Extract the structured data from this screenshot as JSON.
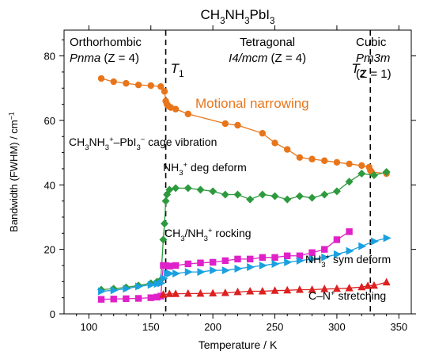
{
  "chart_data": {
    "type": "line",
    "title_parts": [
      {
        "t": "CH",
        "s": "base"
      },
      {
        "t": "3",
        "s": "sub"
      },
      {
        "t": "NH",
        "s": "base"
      },
      {
        "t": "3",
        "s": "sub"
      },
      {
        "t": "PbI",
        "s": "base"
      },
      {
        "t": "3",
        "s": "sub"
      }
    ],
    "xlabel": "Temperature / K",
    "ylabel_parts": [
      {
        "t": "Bandwidth (FWHM) / cm",
        "s": "base"
      },
      {
        "t": "−1",
        "s": "sup"
      }
    ],
    "xlim": [
      80,
      360
    ],
    "ylim": [
      0,
      88
    ],
    "xticks": [
      100,
      150,
      200,
      250,
      300,
      350
    ],
    "yticks": [
      0,
      20,
      40,
      60,
      80
    ],
    "transitions": [
      {
        "x": 162,
        "label": "T",
        "sub": "1"
      },
      {
        "x": 327,
        "label": "T",
        "sub": "2"
      }
    ],
    "phases": [
      {
        "name": "Orthorhombic",
        "group": "Pnma",
        "z": "(Z = 4)"
      },
      {
        "name": "Tetragonal",
        "group": "I4/mcm",
        "z": "(Z = 4)"
      },
      {
        "name": "Cubic",
        "group": "Pm3m",
        "z": "(Z = 1)"
      }
    ],
    "annotations": [
      {
        "id": "motional-narrowing",
        "color": "#e8751a",
        "parts": [
          {
            "t": "Motional narrowing",
            "s": "base"
          }
        ]
      },
      {
        "id": "cage-vibration",
        "color": "#000000",
        "parts": [
          {
            "t": "CH",
            "s": "base"
          },
          {
            "t": "3",
            "s": "sub"
          },
          {
            "t": "NH",
            "s": "base"
          },
          {
            "t": "3",
            "s": "sub"
          },
          {
            "t": "+",
            "s": "sup"
          },
          {
            "t": "–PbI",
            "s": "base"
          },
          {
            "t": "3",
            "s": "sub"
          },
          {
            "t": "−",
            "s": "sup"
          },
          {
            "t": " cage vibration",
            "s": "base"
          }
        ]
      },
      {
        "id": "deg-deform",
        "color": "#000000",
        "parts": [
          {
            "t": "NH",
            "s": "base"
          },
          {
            "t": "3",
            "s": "sub"
          },
          {
            "t": "+",
            "s": "sup"
          },
          {
            "t": " deg deform",
            "s": "base"
          }
        ]
      },
      {
        "id": "rocking",
        "color": "#000000",
        "parts": [
          {
            "t": "CH",
            "s": "base"
          },
          {
            "t": "3",
            "s": "sub"
          },
          {
            "t": "/NH",
            "s": "base"
          },
          {
            "t": "3",
            "s": "sub"
          },
          {
            "t": "+",
            "s": "sup"
          },
          {
            "t": " rocking",
            "s": "base"
          }
        ]
      },
      {
        "id": "sym-deform",
        "color": "#000000",
        "parts": [
          {
            "t": "NH",
            "s": "base"
          },
          {
            "t": "3",
            "s": "sub"
          },
          {
            "t": "+",
            "s": "sup"
          },
          {
            "t": " sym deform",
            "s": "base"
          }
        ]
      },
      {
        "id": "stretching",
        "color": "#000000",
        "parts": [
          {
            "t": "C–N",
            "s": "base"
          },
          {
            "t": "+",
            "s": "sup"
          },
          {
            "t": " stretching",
            "s": "base"
          }
        ]
      }
    ],
    "series": [
      {
        "id": "cage",
        "color": "#e8751a",
        "marker": "circle",
        "x": [
          110,
          120,
          130,
          140,
          150,
          158,
          161,
          162,
          163,
          164,
          166,
          170,
          180,
          210,
          220,
          240,
          250,
          260,
          270,
          280,
          290,
          300,
          310,
          320,
          326,
          327,
          328,
          340
        ],
        "y": [
          73,
          72,
          71.5,
          71,
          70.8,
          70.5,
          69,
          66,
          65,
          64.5,
          64,
          63.5,
          62,
          59,
          58.5,
          56,
          53,
          51,
          48.5,
          48,
          47.5,
          47,
          46.5,
          46,
          45.5,
          44.5,
          44,
          43.5
        ]
      },
      {
        "id": "deg",
        "color": "#2e9a3e",
        "marker": "diamond",
        "x": [
          110,
          120,
          130,
          140,
          150,
          155,
          158,
          160,
          161,
          162,
          163,
          165,
          170,
          180,
          190,
          200,
          210,
          220,
          230,
          240,
          250,
          260,
          270,
          280,
          290,
          300,
          310,
          320,
          330,
          340
        ],
        "y": [
          7.5,
          7.8,
          8.2,
          8.8,
          9.5,
          10,
          10.5,
          23,
          28,
          35,
          37,
          38.5,
          39,
          39,
          38.5,
          38,
          37,
          37,
          35.5,
          37,
          36.5,
          35.5,
          36.5,
          36,
          37,
          38,
          41,
          43.5,
          43,
          44
        ]
      },
      {
        "id": "rocking",
        "color": "#e020c8",
        "marker": "square",
        "x": [
          110,
          120,
          130,
          140,
          150,
          155,
          158,
          160,
          162,
          165,
          170,
          180,
          190,
          200,
          210,
          220,
          230,
          240,
          250,
          260,
          270,
          280,
          290,
          300,
          310
        ],
        "y": [
          4.5,
          4.6,
          4.7,
          4.8,
          5,
          5.2,
          5.5,
          15,
          15,
          14.8,
          15,
          15.5,
          15.8,
          16,
          16.5,
          17,
          17,
          17.5,
          17.5,
          18,
          18,
          19,
          20,
          23,
          25.5
        ]
      },
      {
        "id": "sym",
        "color": "#1aa0e0",
        "marker": "triangle-right",
        "x": [
          110,
          120,
          130,
          140,
          150,
          155,
          158,
          160,
          163,
          165,
          170,
          180,
          190,
          200,
          210,
          220,
          230,
          240,
          250,
          260,
          270,
          280,
          290,
          300,
          310,
          320,
          330,
          340
        ],
        "y": [
          7,
          7.3,
          7.8,
          8.5,
          9,
          9.3,
          9.5,
          11,
          12.5,
          12.5,
          12.5,
          13,
          13,
          13.5,
          13.5,
          14,
          14.5,
          15,
          15.5,
          16,
          16.5,
          17,
          17.5,
          18.5,
          19.5,
          21,
          22.5,
          23.5
        ]
      },
      {
        "id": "stretch",
        "color": "#dd2020",
        "marker": "triangle-up",
        "x": [
          160,
          165,
          170,
          180,
          190,
          200,
          210,
          220,
          230,
          240,
          250,
          260,
          270,
          280,
          290,
          300,
          310,
          320,
          325,
          330,
          340
        ],
        "y": [
          6,
          6.2,
          6.2,
          6.3,
          6.3,
          6.4,
          6.5,
          6.8,
          7,
          7,
          7.2,
          7.3,
          7.5,
          7.5,
          7.7,
          7.8,
          8,
          8.3,
          8.7,
          8.8,
          9.8
        ]
      }
    ]
  }
}
